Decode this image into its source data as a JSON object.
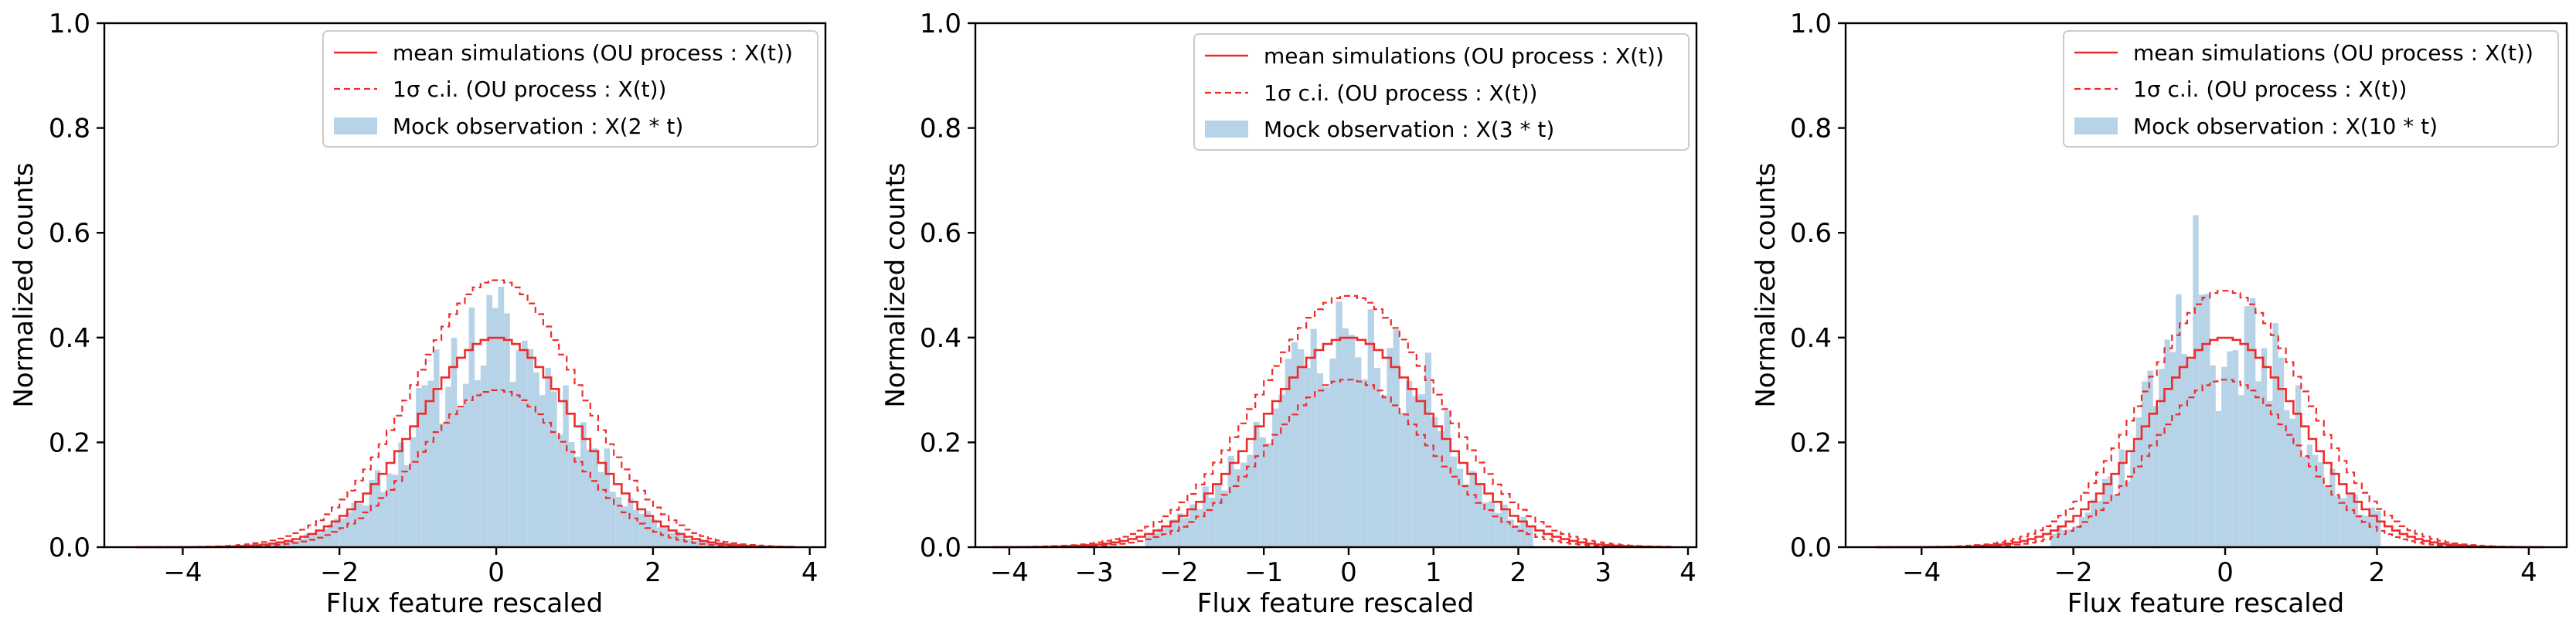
{
  "figure": {
    "background": "#ffffff",
    "colors": {
      "mean": "#ee2b2b",
      "ci": "#ee2b2b",
      "bars": "#b6d3e7"
    }
  },
  "chart_data": [
    {
      "type": "bar",
      "xlabel": "Flux feature rescaled",
      "ylabel": "Normalized counts",
      "xlim": [
        -5,
        4.2
      ],
      "ylim": [
        0,
        1.0
      ],
      "xticks": [
        -4,
        -2,
        0,
        2,
        4
      ],
      "xtick_labels": [
        "−4",
        "−2",
        "0",
        "2",
        "4"
      ],
      "yticks": [
        0,
        0.2,
        0.4,
        0.6,
        0.8,
        1.0
      ],
      "ytick_labels": [
        "0.0",
        "0.2",
        "0.4",
        "0.6",
        "0.8",
        "1.0"
      ],
      "legend_position": "top-right",
      "legend": [
        {
          "label": "mean simulations (OU process : X(t))",
          "style": "solid"
        },
        {
          "label": "1σ c.i. (OU process : X(t))",
          "style": "dashed"
        },
        {
          "label": "Mock observation : X(2 * t)",
          "style": "patch"
        }
      ],
      "series": [
        {
          "name": "Mock observation : X(2 * t)",
          "kind": "histogram",
          "scale": 1.0,
          "seed": 11,
          "noise": 0.28,
          "range": [
            -3.2,
            2.9
          ]
        },
        {
          "name": "mean simulations (OU process : X(t))",
          "kind": "gaussian-step",
          "peak": 0.4,
          "sigma": 1.0,
          "range": [
            -4.6,
            3.8
          ]
        },
        {
          "name": "1σ c.i. upper",
          "kind": "gaussian-step",
          "peak": 0.51,
          "sigma": 1.05,
          "range": [
            -4.6,
            3.8
          ]
        },
        {
          "name": "1σ c.i. lower",
          "kind": "gaussian-step",
          "peak": 0.3,
          "sigma": 0.95,
          "range": [
            -4.6,
            3.8
          ]
        }
      ]
    },
    {
      "type": "bar",
      "xlabel": "Flux feature rescaled",
      "ylabel": "Normalized counts",
      "xlim": [
        -4.4,
        4.1
      ],
      "ylim": [
        0,
        1.0
      ],
      "xticks": [
        -4,
        -3,
        -2,
        -1,
        0,
        1,
        2,
        3,
        4
      ],
      "xtick_labels": [
        "−4",
        "−3",
        "−2",
        "−1",
        "0",
        "1",
        "2",
        "3",
        "4"
      ],
      "yticks": [
        0,
        0.2,
        0.4,
        0.6,
        0.8,
        1.0
      ],
      "ytick_labels": [
        "0.0",
        "0.2",
        "0.4",
        "0.6",
        "0.8",
        "1.0"
      ],
      "legend_position": "top-right",
      "legend": [
        {
          "label": "mean simulations (OU process : X(t))",
          "style": "solid"
        },
        {
          "label": "1σ c.i. (OU process : X(t))",
          "style": "dashed"
        },
        {
          "label": "Mock observation : X(3 * t)",
          "style": "patch"
        }
      ],
      "series": [
        {
          "name": "Mock observation : X(3 * t)",
          "kind": "histogram",
          "scale": 1.0,
          "seed": 23,
          "noise": 0.25,
          "range": [
            -2.4,
            2.1
          ]
        },
        {
          "name": "mean simulations (OU process : X(t))",
          "kind": "gaussian-step",
          "peak": 0.4,
          "sigma": 1.0,
          "range": [
            -4.2,
            3.8
          ]
        },
        {
          "name": "1σ c.i. upper",
          "kind": "gaussian-step",
          "peak": 0.48,
          "sigma": 1.05,
          "range": [
            -4.2,
            3.8
          ]
        },
        {
          "name": "1σ c.i. lower",
          "kind": "gaussian-step",
          "peak": 0.32,
          "sigma": 0.95,
          "range": [
            -4.2,
            3.8
          ]
        }
      ]
    },
    {
      "type": "bar",
      "xlabel": "Flux feature rescaled",
      "ylabel": "Normalized counts",
      "xlim": [
        -5,
        4.5
      ],
      "ylim": [
        0,
        1.0
      ],
      "xticks": [
        -4,
        -2,
        0,
        2,
        4
      ],
      "xtick_labels": [
        "−4",
        "−2",
        "0",
        "2",
        "4"
      ],
      "yticks": [
        0,
        0.2,
        0.4,
        0.6,
        0.8,
        1.0
      ],
      "ytick_labels": [
        "0.0",
        "0.2",
        "0.4",
        "0.6",
        "0.8",
        "1.0"
      ],
      "legend_position": "top-right",
      "legend": [
        {
          "label": "mean simulations (OU process : X(t))",
          "style": "solid"
        },
        {
          "label": "1σ c.i. (OU process : X(t))",
          "style": "dashed"
        },
        {
          "label": "Mock observation : X(10 * t)",
          "style": "patch"
        }
      ],
      "series": [
        {
          "name": "Mock observation : X(10 * t)",
          "kind": "histogram",
          "scale": 1.0,
          "seed": 37,
          "noise": 0.35,
          "range": [
            -2.3,
            2.0
          ]
        },
        {
          "name": "mean simulations (OU process : X(t))",
          "kind": "gaussian-step",
          "peak": 0.4,
          "sigma": 1.0,
          "range": [
            -4.6,
            4.2
          ]
        },
        {
          "name": "1σ c.i. upper",
          "kind": "gaussian-step",
          "peak": 0.49,
          "sigma": 1.05,
          "range": [
            -4.6,
            4.2
          ]
        },
        {
          "name": "1σ c.i. lower",
          "kind": "gaussian-step",
          "peak": 0.32,
          "sigma": 0.95,
          "range": [
            -4.6,
            4.2
          ]
        }
      ]
    }
  ]
}
